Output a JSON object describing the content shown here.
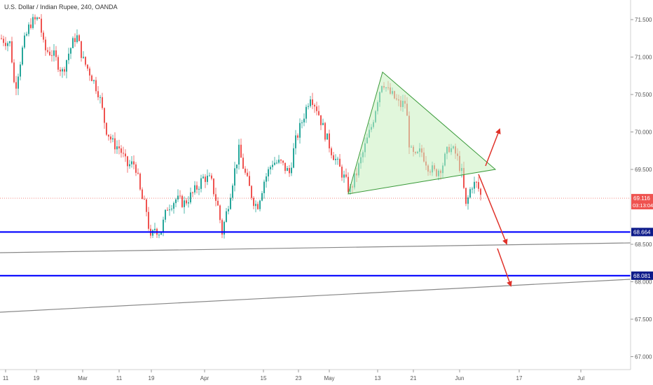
{
  "header": {
    "title": "U.S. Dollar / Indian Rupee, 240, OANDA"
  },
  "colors": {
    "up": "#26a69a",
    "down": "#ef5350",
    "support": "#0000ff",
    "triangle_fill": "#c8f0c0",
    "triangle_stroke": "#3a9a3a",
    "trendline": "#888888",
    "arrow": "#e0322a",
    "price_line": "#f28b82",
    "badge_price": "#ef5350",
    "badge_level": "#0d1b8a"
  },
  "chart_data": {
    "type": "candlestick",
    "title": "U.S. Dollar / Indian Rupee, 240, OANDA",
    "ylim": [
      66.5,
      71.75
    ],
    "y_ticks": [
      "71.500",
      "71.000",
      "70.500",
      "70.000",
      "69.500",
      "68.500",
      "68.000",
      "67.500",
      "67.000"
    ],
    "x_ticks": [
      "11",
      "19",
      "Mar",
      "11",
      "19",
      "Apr",
      "15",
      "23",
      "May",
      "13",
      "21",
      "Jun",
      "17",
      "Jul"
    ],
    "current_price": "69.116",
    "countdown": "03:13:04",
    "support_levels": [
      "68.664",
      "68.081"
    ],
    "pattern": "symmetrical triangle",
    "arrows": [
      "breakout-up",
      "breakdown-to-68.664",
      "breakdown-to-68.081"
    ]
  }
}
